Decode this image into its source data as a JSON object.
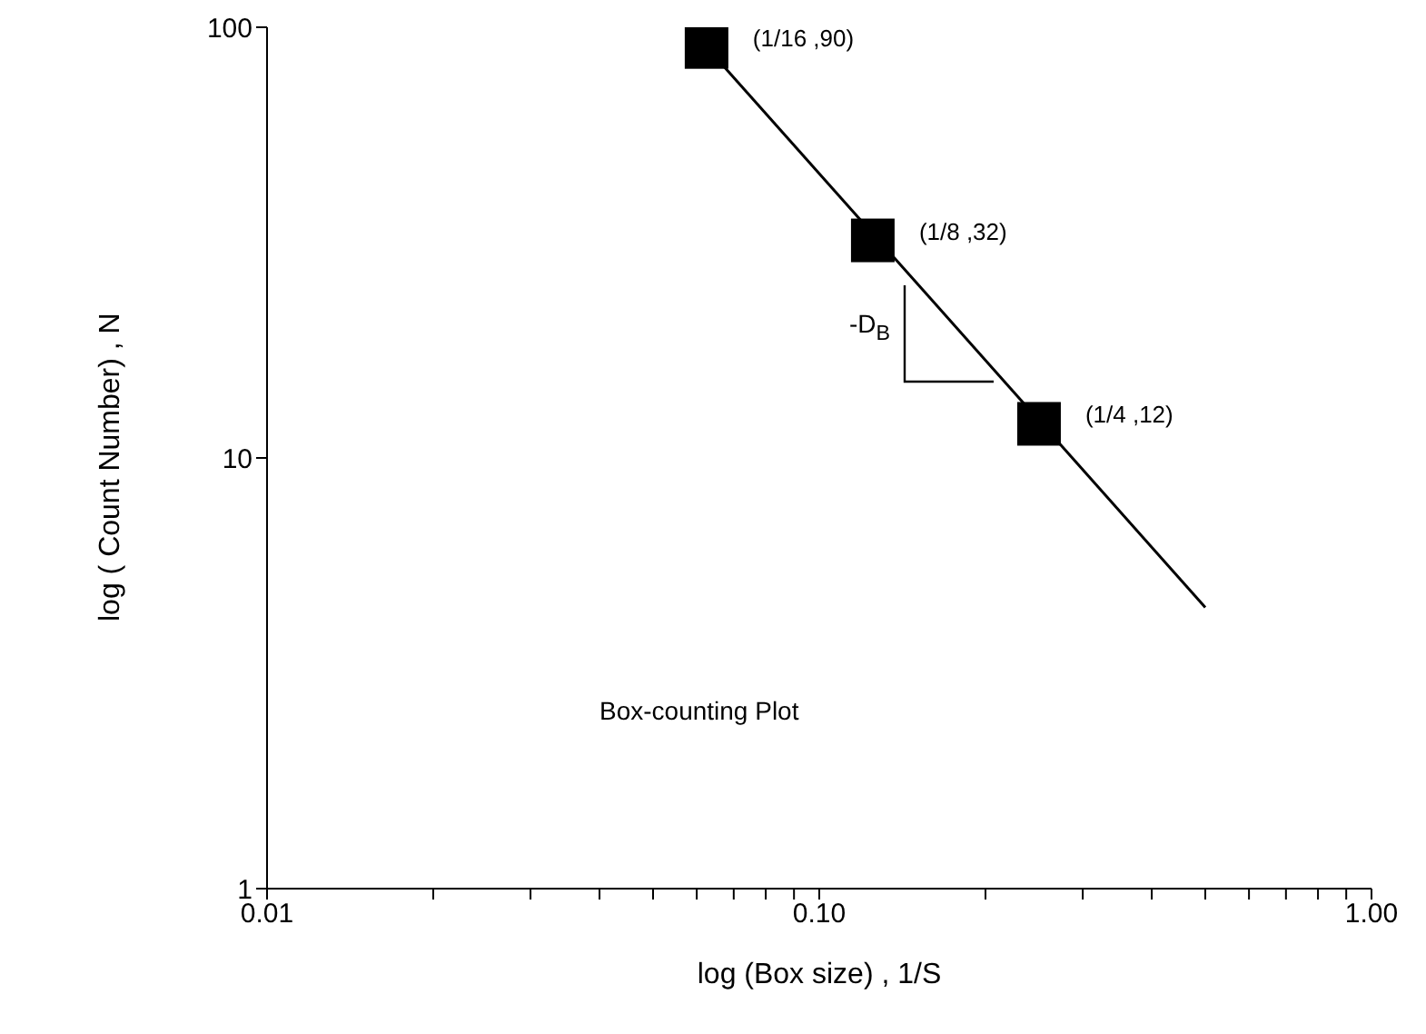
{
  "chart_data": {
    "type": "scatter",
    "xlabel": "log (Box size) , 1/S",
    "ylabel": "log ( Count Number) , N",
    "log": "xy",
    "xlim": [
      0.01,
      1
    ],
    "xticks": [
      {
        "value": 0.01,
        "label": "0.01"
      },
      {
        "value": 0.02,
        "label": null
      },
      {
        "value": 0.03,
        "label": null
      },
      {
        "value": 0.04,
        "label": null
      },
      {
        "value": 0.05,
        "label": null
      },
      {
        "value": 0.06,
        "label": null
      },
      {
        "value": 0.07,
        "label": null
      },
      {
        "value": 0.08,
        "label": null
      },
      {
        "value": 0.09,
        "label": null
      },
      {
        "value": 0.1,
        "label": "0.10"
      },
      {
        "value": 0.2,
        "label": null
      },
      {
        "value": 0.3,
        "label": null
      },
      {
        "value": 0.4,
        "label": null
      },
      {
        "value": 0.5,
        "label": null
      },
      {
        "value": 0.6,
        "label": null
      },
      {
        "value": 0.7,
        "label": null
      },
      {
        "value": 0.8,
        "label": null
      },
      {
        "value": 0.9,
        "label": null
      },
      {
        "value": 1,
        "label": "1.00"
      }
    ],
    "ylim": [
      1,
      100
    ],
    "yticks": [
      1,
      10,
      100
    ],
    "series": [
      {
        "color": "#000000",
        "marker": "square",
        "x": [
          0.0625,
          0.125,
          0.25
        ],
        "values": [
          90,
          32,
          12
        ],
        "value_labels": [
          "(1/16 ,90)",
          "(1/8 ,32)",
          "(1/4 ,12)"
        ]
      },
      {
        "type": "line",
        "color": "#000000",
        "marker": "none",
        "x": [
          0.0625,
          0.5
        ],
        "values": [
          90,
          4.5
        ]
      }
    ],
    "annotations": [
      "-D$_{B}$",
      "Box-counting Plot"
    ]
  }
}
